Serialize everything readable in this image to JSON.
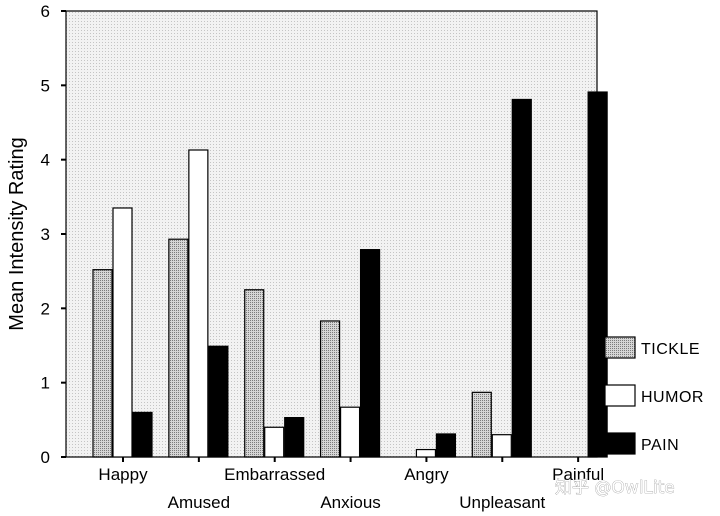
{
  "chart_data": {
    "type": "bar",
    "title": "",
    "xlabel": "",
    "ylabel": "Mean Intensity Rating",
    "ylim": [
      0,
      6
    ],
    "yticks": [
      "0",
      "1",
      "2",
      "3",
      "4",
      "5",
      "6"
    ],
    "categories": [
      "Happy",
      "Amused",
      "Embarrassed",
      "Anxious",
      "Angry",
      "Unpleasant",
      "Painful"
    ],
    "series": [
      {
        "name": "TICKLE",
        "pattern": "dotted-gray",
        "values": [
          2.52,
          2.93,
          2.25,
          1.83,
          null,
          0.87,
          null
        ]
      },
      {
        "name": "HUMOR",
        "pattern": "white",
        "values": [
          3.35,
          4.13,
          0.4,
          0.67,
          0.1,
          0.3,
          null
        ]
      },
      {
        "name": "PAIN",
        "pattern": "black",
        "values": [
          0.6,
          1.49,
          0.53,
          2.79,
          0.31,
          4.81,
          4.91
        ]
      }
    ],
    "legend_position": "bottom-right",
    "grid": false,
    "plot_background": "dotted-light-gray"
  },
  "watermark": "知乎 @OwlLite"
}
